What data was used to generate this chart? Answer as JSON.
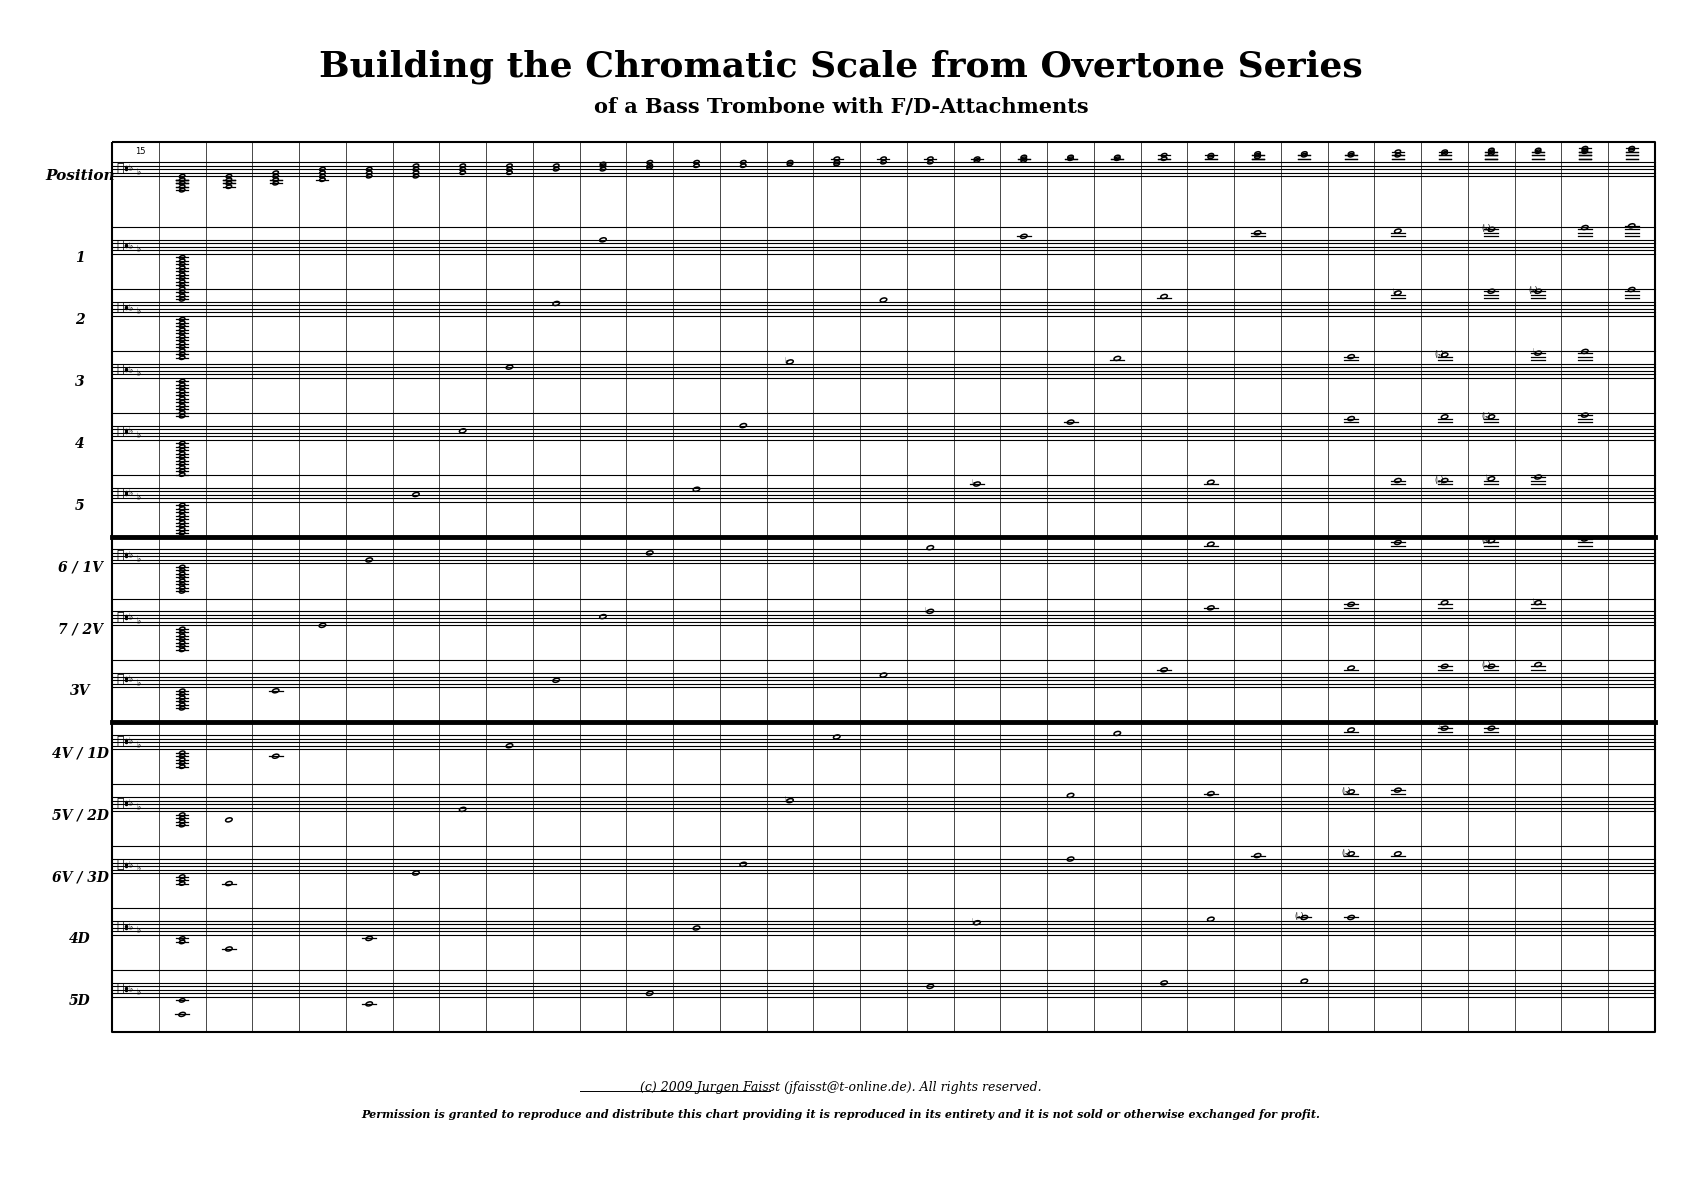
{
  "title": "Building the Chromatic Scale from Overtone Series",
  "subtitle": "of a Bass Trombone with F/D-Attachments",
  "copyright": "(c) 2009 Jurgen Faisst (jfaisst@t-online.de). All rights reserved.",
  "permission": "Permission is granted to reproduce and distribute this chart providing it is reproduced in its entirety and it is not sold or otherwise exchanged for profit.",
  "position_label": "Position",
  "positions": [
    "1",
    "2",
    "3",
    "4",
    "5",
    "6 / 1V",
    "7 / 2V",
    "3V",
    "4V / 1D",
    "5V / 2D",
    "6V / 3D",
    "4D",
    "5D"
  ],
  "bg_color": "#ffffff",
  "thick_after_rows": [
    6,
    9
  ],
  "num_vcols": 33,
  "title_fontsize": 22,
  "subtitle_fontsize": 14,
  "copyright_fontsize": 9
}
